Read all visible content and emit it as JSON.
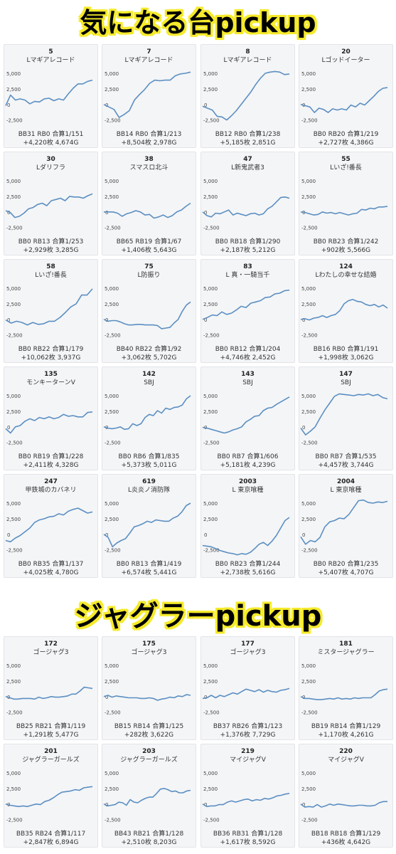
{
  "headings": {
    "section1": "気になる台pickup",
    "section2": "ジャグラーpickup"
  },
  "y_ticks": [
    "5,000",
    "2,500",
    "0",
    "-2,500"
  ],
  "colors": {
    "line": "#5b8fc2",
    "card_bg": "#f4f5f7",
    "highlight": "#f5ea2a"
  },
  "section1_cards": [
    {
      "num": "5",
      "name": "Lマギアレコード",
      "stats1": "BB31 RB0 合算1/151",
      "stats2": "+4,220枚 4,674G",
      "chart_data": {
        "type": "line",
        "ylim": [
          -3000,
          5000
        ],
        "y": [
          -200,
          1500,
          700,
          900,
          700,
          100,
          500,
          400,
          900,
          1000,
          600,
          900,
          700,
          1700,
          2600,
          3300,
          3300,
          3700,
          3900
        ]
      }
    },
    {
      "num": "7",
      "name": "Lマギアレコード",
      "stats1": "BB14 RB0 合算1/213",
      "stats2": "+8,504枚 2,978G",
      "chart_data": {
        "type": "line",
        "ylim": [
          -3000,
          5000
        ],
        "y": [
          0,
          -400,
          -800,
          -2100,
          -1600,
          -1000,
          700,
          1600,
          2400,
          3400,
          3900,
          3800,
          3900,
          3900,
          4600,
          4900,
          5000,
          5200
        ]
      }
    },
    {
      "num": "8",
      "name": "Lマギアレコード",
      "stats1": "BB12 RB0 合算1/238",
      "stats2": "+5,185枚 2,851G",
      "chart_data": {
        "type": "line",
        "ylim": [
          -3000,
          5000
        ],
        "y": [
          -300,
          -600,
          -900,
          -1900,
          -2000,
          -2500,
          -1800,
          -1000,
          0,
          1000,
          2000,
          3200,
          4200,
          5000,
          5200,
          5300,
          5200,
          4800,
          4900
        ]
      }
    },
    {
      "num": "20",
      "name": "Lゴッドイーター",
      "stats1": "BB0 RB20 合算1/219",
      "stats2": "+2,727枚 4,386G",
      "chart_data": {
        "type": "line",
        "ylim": [
          -3000,
          5000
        ],
        "y": [
          0,
          -200,
          -400,
          -1300,
          -600,
          -800,
          -1300,
          -700,
          -900,
          -700,
          -900,
          -100,
          -400,
          200,
          -100,
          600,
          1300,
          2100,
          2600,
          2700
        ]
      }
    }
  ],
  "section1_row2": [
    {
      "num": "30",
      "name": "Lダリフラ",
      "stats1": "BB0 RB13 合算1/253",
      "stats2": "+2,929枚 3,285G",
      "chart_data": {
        "type": "line",
        "ylim": [
          -3000,
          5000
        ],
        "y": [
          200,
          -100,
          -900,
          -700,
          -200,
          500,
          700,
          1200,
          1400,
          1000,
          1800,
          2000,
          2200,
          1800,
          2500,
          2400,
          2400,
          2200,
          2600,
          2900
        ]
      }
    },
    {
      "num": "38",
      "name": "スマスロ北斗",
      "stats1": "BB65 RB19 合算1/67",
      "stats2": "+1,406枚 5,643G",
      "chart_data": {
        "type": "line",
        "ylim": [
          -3000,
          5000
        ],
        "y": [
          0,
          0,
          0,
          -200,
          -700,
          -300,
          -100,
          200,
          0,
          -500,
          -400,
          -1000,
          -800,
          -500,
          -900,
          -600,
          0,
          300,
          900,
          1400
        ]
      }
    },
    {
      "num": "47",
      "name": "L新鬼武者3",
      "stats1": "BB0 RB18 合算1/290",
      "stats2": "+2,187枚 5,212G",
      "chart_data": {
        "type": "line",
        "ylim": [
          -3000,
          5000
        ],
        "y": [
          0,
          -600,
          -800,
          -200,
          -300,
          0,
          300,
          -500,
          -200,
          -400,
          -600,
          -300,
          -200,
          -500,
          -300,
          500,
          900,
          1600,
          2300,
          2400,
          2200
        ]
      }
    },
    {
      "num": "55",
      "name": "Lいざ!番長",
      "stats1": "BB0 RB23 合算1/242",
      "stats2": "+902枚 5,566G",
      "chart_data": {
        "type": "line",
        "ylim": [
          -3000,
          5000
        ],
        "y": [
          0,
          -100,
          -300,
          -500,
          -400,
          0,
          -200,
          -100,
          -300,
          -100,
          -300,
          -500,
          -300,
          -200,
          400,
          300,
          600,
          500,
          800,
          800,
          900
        ]
      }
    }
  ],
  "section1_row3": [
    {
      "num": "58",
      "name": "Lいざ!番長",
      "stats1": "BB0 RB22 合算1/179",
      "stats2": "+10,062枚 3,937G",
      "chart_data": {
        "type": "line",
        "ylim": [
          -3000,
          5000
        ],
        "y": [
          -100,
          -600,
          -300,
          -500,
          -900,
          -500,
          -800,
          -700,
          -300,
          -300,
          300,
          1100,
          2000,
          2500,
          3900,
          3900,
          4900
        ]
      }
    },
    {
      "num": "75",
      "name": "L防振り",
      "stats1": "BB40 RB22 合算1/92",
      "stats2": "+3,062枚 5,702G",
      "chart_data": {
        "type": "line",
        "ylim": [
          -3000,
          5000
        ],
        "y": [
          0,
          -300,
          -200,
          -200,
          -400,
          -700,
          -900,
          -900,
          -800,
          -800,
          -900,
          -900,
          -900,
          -1000,
          -1500,
          -1400,
          -1300,
          -600,
          0,
          1300,
          2300,
          2800
        ]
      }
    },
    {
      "num": "83",
      "name": "L 真・一騎当千",
      "stats1": "BB0 RB12 合算1/204",
      "stats2": "+4,746枚 2,452G",
      "chart_data": {
        "type": "line",
        "ylim": [
          -3000,
          5000
        ],
        "y": [
          0,
          300,
          700,
          600,
          1200,
          800,
          1000,
          1500,
          2100,
          1900,
          2600,
          2800,
          3000,
          3500,
          3600,
          4100,
          4200,
          4600,
          4700
        ]
      }
    },
    {
      "num": "124",
      "name": "Lわたしの幸せな結婚",
      "stats1": "BB16 RB0 合算1/191",
      "stats2": "+1,998枚 3,062G",
      "chart_data": {
        "type": "line",
        "ylim": [
          -3000,
          5000
        ],
        "y": [
          0,
          100,
          -100,
          200,
          300,
          600,
          300,
          600,
          800,
          1400,
          2500,
          3000,
          3200,
          2900,
          2800,
          2400,
          2200,
          2400,
          2000,
          2300,
          1800
        ]
      }
    }
  ],
  "section1_row4": [
    {
      "num": "135",
      "name": "モンキーターンV",
      "stats1": "BB0 RB19 合算1/228",
      "stats2": "+2,411枚 4,328G",
      "chart_data": {
        "type": "line",
        "ylim": [
          -3000,
          5000
        ],
        "y": [
          -300,
          -1000,
          0,
          200,
          900,
          1300,
          1000,
          1500,
          1300,
          1600,
          1300,
          1500,
          2000,
          1700,
          1800,
          1600,
          1600,
          2300,
          2400
        ]
      }
    },
    {
      "num": "142",
      "name": "SBJ",
      "stats1": "BB0 RB6 合算1/835",
      "stats2": "+5,373枚 5,011G",
      "chart_data": {
        "type": "line",
        "ylim": [
          -3000,
          5000
        ],
        "y": [
          0,
          -200,
          -300,
          -200,
          0,
          -400,
          -300,
          500,
          200,
          500,
          1500,
          2000,
          1800,
          2600,
          2200,
          3000,
          2800,
          3100,
          3200,
          3500,
          4500,
          5000
        ]
      }
    },
    {
      "num": "143",
      "name": "SBJ",
      "stats1": "BB0 RB7 合算1/606",
      "stats2": "+5,181枚 4,239G",
      "chart_data": {
        "type": "line",
        "ylim": [
          -3000,
          5000
        ],
        "y": [
          -100,
          -200,
          -400,
          -600,
          -800,
          -1000,
          -800,
          -500,
          -300,
          0,
          800,
          1200,
          1700,
          1800,
          2600,
          3000,
          3100,
          3600,
          4000,
          4400,
          4800
        ]
      }
    },
    {
      "num": "147",
      "name": "SBJ",
      "stats1": "BB0 RB7 合算1/535",
      "stats2": "+4,457枚 3,744G",
      "chart_data": {
        "type": "line",
        "ylim": [
          -3000,
          5000
        ],
        "y": [
          -200,
          -1300,
          -700,
          0,
          1400,
          2700,
          3800,
          4900,
          5300,
          5200,
          5100,
          5000,
          5200,
          5100,
          5300,
          5000,
          5200,
          4700,
          4500
        ]
      }
    }
  ],
  "section1_row5": [
    {
      "num": "247",
      "name": "甲鉄城のカバネリ",
      "stats1": "BB0 RB35 合算1/137",
      "stats2": "+4,025枚 4,780G",
      "chart_data": {
        "type": "line",
        "ylim": [
          -3000,
          5000
        ],
        "y": [
          -1000,
          -1200,
          -600,
          -200,
          400,
          1000,
          1900,
          2300,
          2500,
          2800,
          2900,
          3300,
          3100,
          3700,
          4000,
          4200,
          3800,
          3400,
          3600
        ]
      }
    },
    {
      "num": "619",
      "name": "L炎炎ノ消防隊",
      "stats1": "BB0 RB13 合算1/419",
      "stats2": "+6,574枚 5,441G",
      "chart_data": {
        "type": "line",
        "ylim": [
          -3000,
          5000
        ],
        "y": [
          0,
          -500,
          -2000,
          -1400,
          -1000,
          -700,
          200,
          1200,
          1400,
          1700,
          2100,
          1900,
          2300,
          2200,
          2100,
          2100,
          2600,
          2900,
          3600,
          4600,
          5000
        ]
      }
    },
    {
      "num": "2003",
      "name": "L 東京喰種",
      "stats1": "BB0 RB23 合算1/244",
      "stats2": "+2,738枚 5,616G",
      "chart_data": {
        "type": "line",
        "ylim": [
          -3000,
          5000
        ],
        "y": [
          -1800,
          -1900,
          -2000,
          -2300,
          -2600,
          -2800,
          -3000,
          -3100,
          -3300,
          -3100,
          -3200,
          -2900,
          -2300,
          -1600,
          -1300,
          -1800,
          -1100,
          -200,
          1000,
          2200,
          2700
        ]
      }
    },
    {
      "num": "2004",
      "name": "L 東京喰種",
      "stats1": "BB0 RB20 合算1/235",
      "stats2": "+5,407枚 4,707G",
      "chart_data": {
        "type": "line",
        "ylim": [
          -3000,
          5000
        ],
        "y": [
          -400,
          -1600,
          -1000,
          -1200,
          -500,
          1200,
          2000,
          2200,
          2600,
          2500,
          3200,
          4300,
          5400,
          5500,
          5100,
          5000,
          5200,
          5100,
          5300
        ]
      }
    }
  ],
  "section2_row1": [
    {
      "num": "172",
      "name": "ゴージャグ3",
      "stats1": "BB25 RB21 合算1/119",
      "stats2": "+1,291枚 5,477G",
      "chart_data": {
        "type": "line",
        "ylim": [
          -3000,
          5000
        ],
        "y": [
          0,
          -200,
          -400,
          -400,
          -300,
          -300,
          -300,
          -400,
          -100,
          -300,
          -200,
          0,
          -100,
          -100,
          0,
          100,
          400,
          400,
          900,
          1500,
          1400,
          1300
        ]
      }
    },
    {
      "num": "175",
      "name": "ゴージャグ3",
      "stats1": "BB15 RB14 合算1/125",
      "stats2": "+282枚 3,622G",
      "chart_data": {
        "type": "line",
        "ylim": [
          -3000,
          5000
        ],
        "y": [
          0,
          200,
          -100,
          100,
          0,
          -100,
          -200,
          -200,
          -200,
          -300,
          -300,
          -200,
          -300,
          -600,
          -400,
          -300,
          -100,
          -200,
          100,
          0,
          300,
          200
        ]
      }
    },
    {
      "num": "177",
      "name": "ゴージャグ3",
      "stats1": "BB37 RB26 合算1/123",
      "stats2": "+1,376枚 7,729G",
      "chart_data": {
        "type": "line",
        "ylim": [
          -3000,
          5000
        ],
        "y": [
          -300,
          -200,
          200,
          -200,
          200,
          0,
          300,
          600,
          400,
          800,
          1200,
          1000,
          800,
          1100,
          700,
          1000,
          800,
          700,
          1000,
          1100,
          1300
        ]
      }
    },
    {
      "num": "181",
      "name": "ミスタージャグラー",
      "stats1": "BB19 RB14 合算1/129",
      "stats2": "+1,170枚 4,261G",
      "chart_data": {
        "type": "line",
        "ylim": [
          -3000,
          5000
        ],
        "y": [
          0,
          -300,
          -300,
          -400,
          -500,
          -500,
          -400,
          -300,
          -400,
          -200,
          -400,
          -300,
          -400,
          -200,
          -300,
          -200,
          -200,
          -200,
          300,
          900,
          1100,
          1200
        ]
      }
    }
  ],
  "section2_row2": [
    {
      "num": "201",
      "name": "ジャグラーガールズ",
      "stats1": "BB35 RB24 合算1/117",
      "stats2": "+2,847枚 6,894G",
      "chart_data": {
        "type": "line",
        "ylim": [
          -3000,
          5000
        ],
        "y": [
          0,
          -200,
          -300,
          -400,
          -300,
          -400,
          -200,
          0,
          -100,
          400,
          600,
          1000,
          1500,
          1900,
          2000,
          2100,
          2300,
          2200,
          2600,
          2700,
          2800
        ]
      }
    },
    {
      "num": "203",
      "name": "ジャグラーガールズ",
      "stats1": "BB43 RB21 合算1/128",
      "stats2": "+2,510枚 8,203G",
      "chart_data": {
        "type": "line",
        "ylim": [
          -3000,
          5000
        ],
        "y": [
          0,
          -300,
          -200,
          -100,
          300,
          200,
          -200,
          700,
          300,
          200,
          600,
          900,
          1100,
          1100,
          1700,
          2400,
          2500,
          2300,
          2000,
          2100,
          1800,
          1800,
          2100,
          2200
        ]
      }
    },
    {
      "num": "219",
      "name": "マイジャグV",
      "stats1": "BB36 RB31 合算1/128",
      "stats2": "+1,617枚 8,592G",
      "chart_data": {
        "type": "line",
        "ylim": [
          -3000,
          5000
        ],
        "y": [
          0,
          -400,
          -300,
          -300,
          -100,
          -100,
          300,
          500,
          300,
          500,
          700,
          800,
          500,
          700,
          600,
          900,
          800,
          1000,
          1300,
          1400,
          1600,
          1700
        ]
      }
    },
    {
      "num": "220",
      "name": "マイジャグV",
      "stats1": "BB18 RB18 合算1/129",
      "stats2": "+436枚 4,642G",
      "chart_data": {
        "type": "line",
        "ylim": [
          -3000,
          5000
        ],
        "y": [
          0,
          -500,
          -400,
          -500,
          -100,
          -500,
          -300,
          0,
          -200,
          0,
          -100,
          -200,
          -300,
          -300,
          -200,
          -200,
          -300,
          -300,
          -200,
          200,
          400,
          400
        ]
      }
    }
  ]
}
